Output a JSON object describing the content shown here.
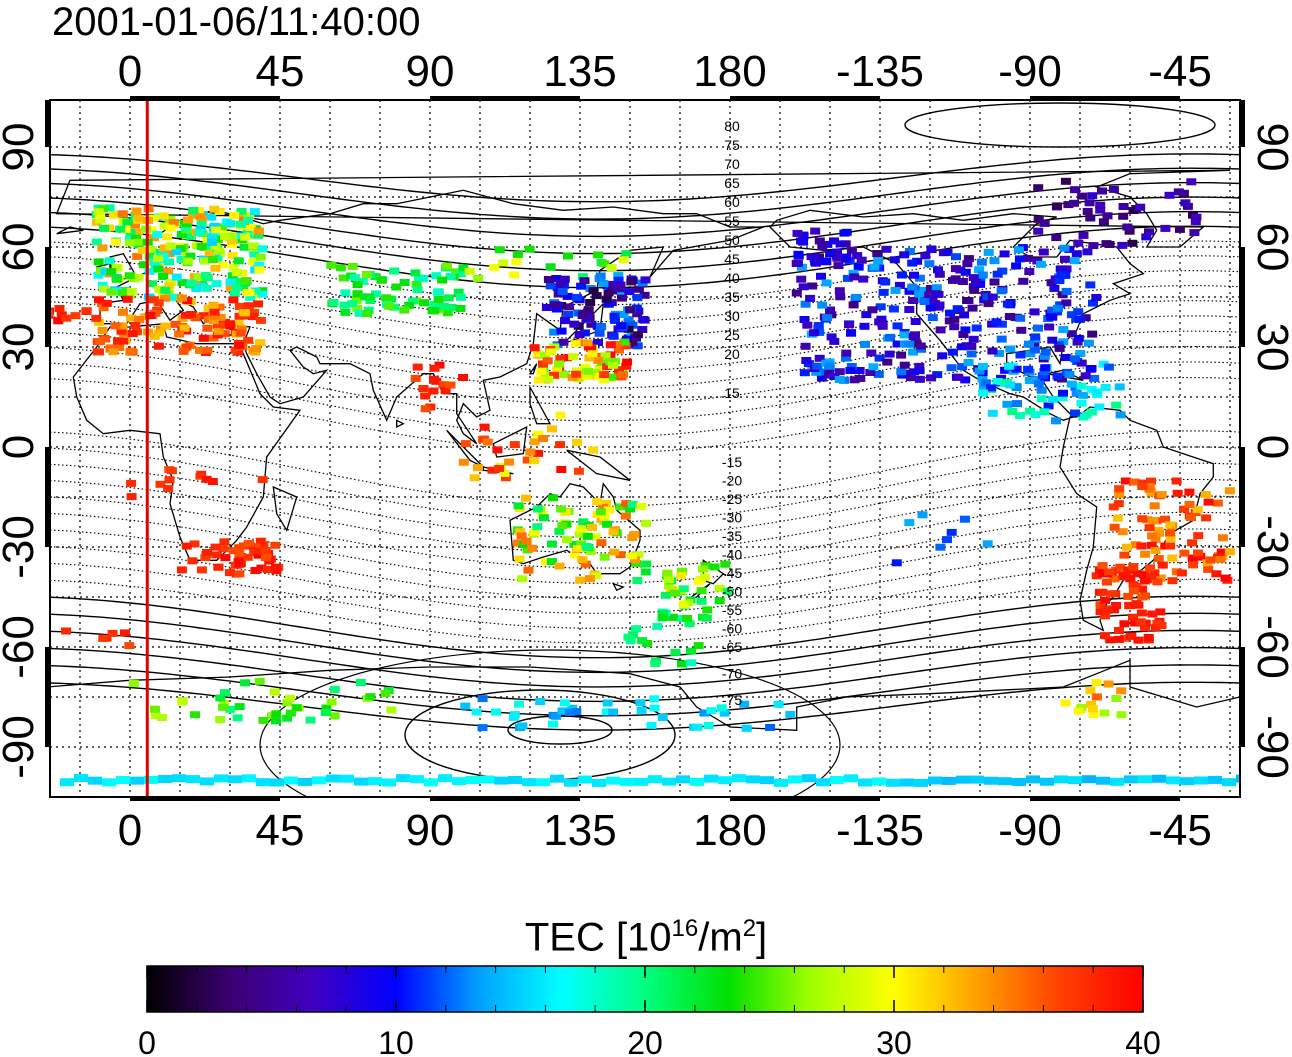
{
  "title": "2001-01-06/11:40:00",
  "map": {
    "lon_ticks": [
      "0",
      "45",
      "90",
      "135",
      "180",
      "-135",
      "-90",
      "-45"
    ],
    "lat_ticks": [
      "90",
      "60",
      "30",
      "0",
      "-30",
      "-60",
      "-90"
    ],
    "marker_longitude_deg": 5,
    "contour_labels_north": [
      "80",
      "75",
      "70",
      "65",
      "60",
      "55",
      "50",
      "45",
      "40",
      "35",
      "30",
      "25",
      "20",
      "15"
    ],
    "contour_labels_south": [
      "-15",
      "-20",
      "-25",
      "-30",
      "-35",
      "-40",
      "-45",
      "-50",
      "-55",
      "-60",
      "-65",
      "-70",
      "-75"
    ],
    "marker_color": "#e00000"
  },
  "colorbar": {
    "title_prefix": "TEC  [10",
    "title_sup1": "16",
    "title_mid": "/m",
    "title_sup2": "2",
    "title_suffix": "]",
    "ticks": [
      "0",
      "10",
      "20",
      "30",
      "40"
    ],
    "range": [
      0,
      40
    ],
    "colors": [
      "#000000",
      "#3a0070",
      "#4000c0",
      "#0000ff",
      "#00a0ff",
      "#00ffff",
      "#00ff80",
      "#00e000",
      "#a0ff00",
      "#ffff00",
      "#ffa000",
      "#ff4000",
      "#ff0000"
    ]
  }
}
